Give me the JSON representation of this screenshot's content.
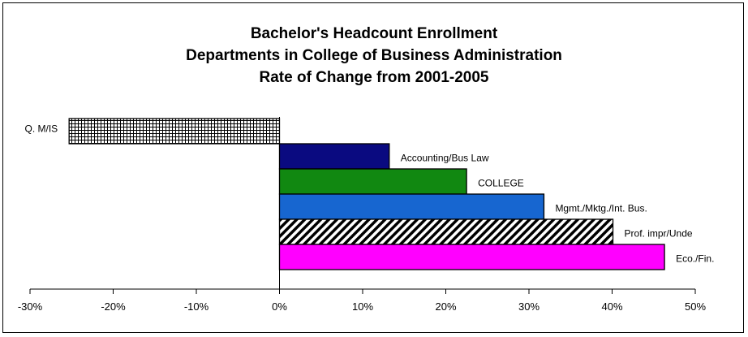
{
  "chart_data": {
    "type": "bar",
    "orientation": "horizontal",
    "title": "Bachelor's Headcount Enrollment",
    "subtitle_lines": [
      "Departments in College of Business Administration",
      "Rate of Change from 2001-2005"
    ],
    "categories": [
      "Q. M/IS",
      "Accounting/Bus Law",
      "COLLEGE",
      "Mgmt./Mktg./Int. Bus.",
      "Prof. impr/Unde",
      "Eco./Fin."
    ],
    "values": [
      -25.3,
      13.2,
      22.5,
      31.8,
      40.1,
      46.3
    ],
    "value_unit": "%",
    "xlim": [
      -30,
      50
    ],
    "xticks": [
      -30,
      -20,
      -10,
      0,
      10,
      20,
      30,
      40,
      50
    ],
    "xtick_labels": [
      "-30%",
      "-20%",
      "-10%",
      "0%",
      "10%",
      "20%",
      "30%",
      "40%",
      "50%"
    ],
    "bar_styles": [
      {
        "fill": "crosshatch",
        "color": "#000000"
      },
      {
        "fill": "solid",
        "color": "#0a0a80"
      },
      {
        "fill": "solid",
        "color": "#118811"
      },
      {
        "fill": "solid",
        "color": "#1766d0"
      },
      {
        "fill": "diagonal-hatch",
        "color": "#000000"
      },
      {
        "fill": "solid",
        "color": "#ff00ff"
      }
    ],
    "grid": false,
    "legend": "none"
  }
}
